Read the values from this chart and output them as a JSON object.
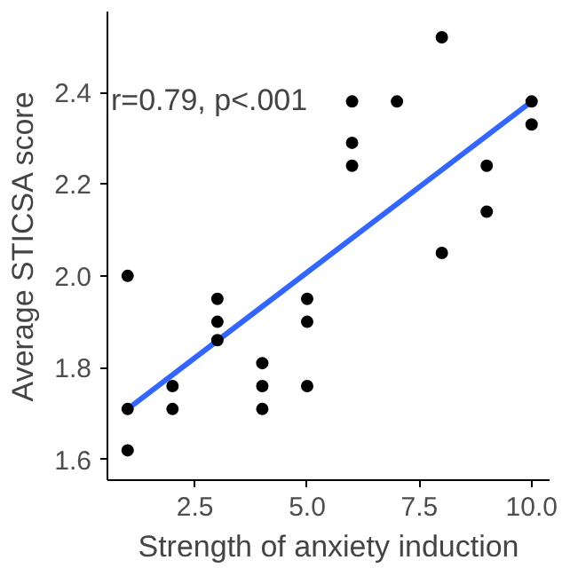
{
  "chart_data": {
    "type": "scatter",
    "xlabel": "Strength of anxiety induction",
    "ylabel": "Average STICSA score",
    "annotations": [
      "r=0.79, p<.001"
    ],
    "xlim": [
      0.55,
      10.4
    ],
    "ylim": [
      1.555,
      2.576
    ],
    "xticks": [
      {
        "value": 2.5,
        "label": "2.5"
      },
      {
        "value": 5,
        "label": "5.0"
      },
      {
        "value": 7.5,
        "label": "7.5"
      },
      {
        "value": 10,
        "label": "10.0"
      }
    ],
    "yticks": [
      {
        "value": 1.6,
        "label": "1.6"
      },
      {
        "value": 1.8,
        "label": "1.8"
      },
      {
        "value": 2.0,
        "label": "2.0"
      },
      {
        "value": 2.2,
        "label": "2.2"
      },
      {
        "value": 2.4,
        "label": "2.4"
      }
    ],
    "grid": false,
    "marker": "circle",
    "series": [
      {
        "color": "#000000",
        "x": [
          1,
          1,
          1,
          2,
          2,
          3,
          3,
          3,
          4,
          4,
          4,
          5,
          5,
          5,
          6,
          6,
          6,
          7,
          8,
          8,
          9,
          9,
          10,
          10
        ],
        "values": [
          2.0,
          1.71,
          1.62,
          1.76,
          1.71,
          1.95,
          1.9,
          1.86,
          1.81,
          1.76,
          1.71,
          1.95,
          1.9,
          1.76,
          2.38,
          2.29,
          2.24,
          2.38,
          2.52,
          2.05,
          2.24,
          2.14,
          2.38,
          2.33
        ]
      },
      {
        "type": "line",
        "marker": "none",
        "color": "#3366ff",
        "x": [
          1,
          10
        ],
        "values": [
          1.71,
          2.38
        ]
      }
    ]
  }
}
